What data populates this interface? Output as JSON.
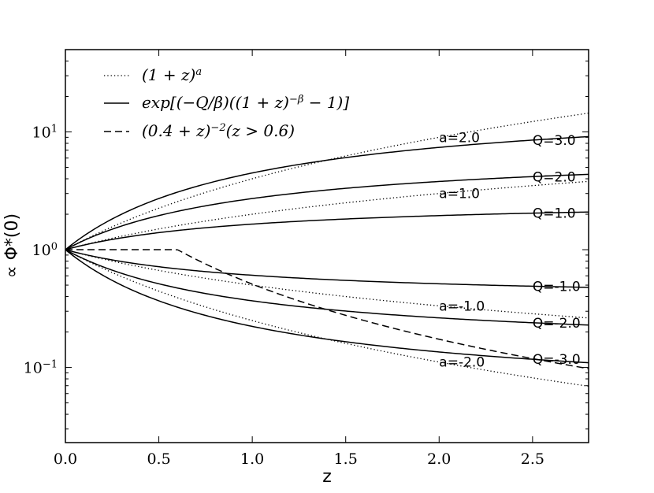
{
  "chart_data": {
    "type": "line",
    "title": "",
    "xlabel": "z",
    "ylabel": "∝ Φ*(0)",
    "xlim": [
      0.0,
      2.8
    ],
    "ylim": [
      0.023,
      50
    ],
    "yscale": "log",
    "grid": false,
    "legend_position": "top-left",
    "x_ticks": [
      0.0,
      0.5,
      1.0,
      1.5,
      2.0,
      2.5
    ],
    "x_tick_labels": [
      "0.0",
      "0.5",
      "1.0",
      "1.5",
      "2.0",
      "2.5"
    ],
    "y_ticks": [
      0.1,
      1,
      10
    ],
    "y_tick_labels": [
      {
        "base": "10",
        "exp": "−1"
      },
      {
        "base": "10",
        "exp": "0"
      },
      {
        "base": "10",
        "exp": "1"
      }
    ],
    "legend": [
      {
        "style": "dotted",
        "label": "(1 + z)^a"
      },
      {
        "style": "solid",
        "label": "exp[(−Q/β)((1 + z)^−β − 1)]"
      },
      {
        "style": "dashed",
        "label": "(0.4 + z)^−2(z > 0.6)"
      }
    ],
    "beta": 1.0,
    "series": [
      {
        "family": "power",
        "style": "dotted",
        "param": 2.0,
        "label": "a=2.0"
      },
      {
        "family": "power",
        "style": "dotted",
        "param": 1.0,
        "label": "a=1.0"
      },
      {
        "family": "power",
        "style": "dotted",
        "param": -1.0,
        "label": "a=-1.0"
      },
      {
        "family": "power",
        "style": "dotted",
        "param": -2.0,
        "label": "a=-2.0"
      },
      {
        "family": "exp",
        "style": "solid",
        "param": 3.0,
        "label": "Q=3.0"
      },
      {
        "family": "exp",
        "style": "solid",
        "param": 2.0,
        "label": "Q=2.0"
      },
      {
        "family": "exp",
        "style": "solid",
        "param": 1.0,
        "label": "Q=1.0"
      },
      {
        "family": "exp",
        "style": "solid",
        "param": -1.0,
        "label": "Q=-1.0"
      },
      {
        "family": "exp",
        "style": "solid",
        "param": -2.0,
        "label": "Q=-2.0"
      },
      {
        "family": "exp",
        "style": "solid",
        "param": -3.0,
        "label": "Q=-3.0"
      },
      {
        "family": "piecewise",
        "style": "dashed",
        "param": null,
        "label": ""
      }
    ]
  }
}
